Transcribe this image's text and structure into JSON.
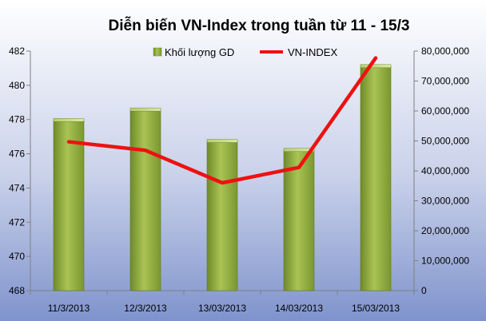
{
  "chart_data": {
    "type": "bar-line-combo",
    "title": "Diễn biến VN-Index trong tuần từ 11 - 15/3",
    "categories": [
      "11/3/2013",
      "12/3/2013",
      "13/03/2013",
      "14/03/2013",
      "15/03/2013"
    ],
    "series": [
      {
        "name": "Khối lượng GD",
        "type": "bar",
        "axis": "right",
        "values": [
          57000000,
          60500000,
          50000000,
          47000000,
          75000000
        ]
      },
      {
        "name": "VN-INDEX",
        "type": "line",
        "axis": "left",
        "values": [
          476.7,
          476.2,
          474.3,
          475.2,
          481.6
        ]
      }
    ],
    "y_left": {
      "min": 468,
      "max": 482,
      "step": 2,
      "ticks": [
        "468",
        "470",
        "472",
        "474",
        "476",
        "478",
        "480",
        "482"
      ]
    },
    "y_right": {
      "min": 0,
      "max": 80000000,
      "step": 10000000,
      "ticks": [
        "0",
        "10,000,000",
        "20,000,000",
        "30,000,000",
        "40,000,000",
        "50,000,000",
        "60,000,000",
        "70,000,000",
        "80,000,000"
      ]
    },
    "legend_position": "top-center",
    "grid": false,
    "colors": {
      "bar_fill": "#8faa3c",
      "bar_highlight": "#c6dc7a",
      "line": "#ee1111",
      "background_top": "#ffffff",
      "background_bottom": "#7f93cc"
    }
  }
}
